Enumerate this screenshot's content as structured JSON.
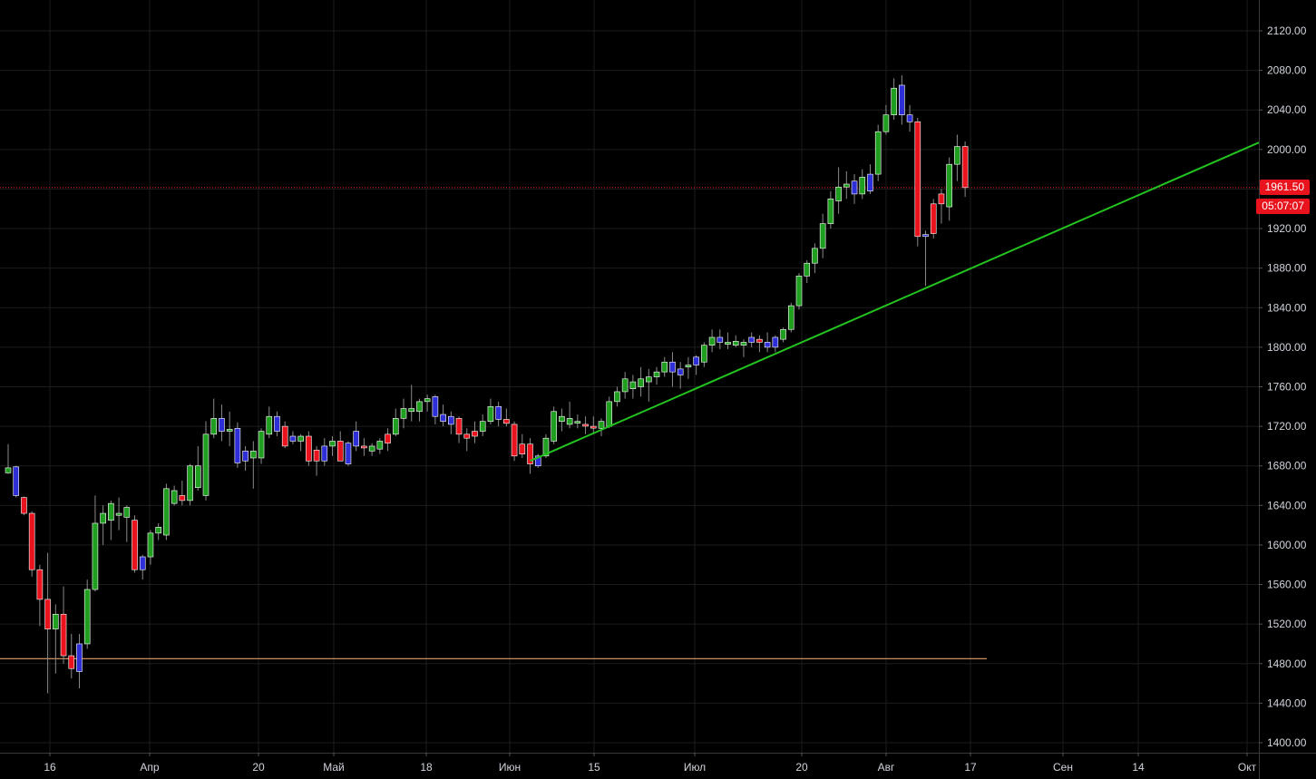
{
  "chart_data": {
    "type": "candlestick",
    "title": "",
    "xlabel": "",
    "ylabel": "",
    "ylim": [
      1390,
      2140
    ],
    "y_ticks": [
      2120,
      2080,
      2040,
      2000,
      1960,
      1920,
      1880,
      1840,
      1800,
      1760,
      1720,
      1680,
      1640,
      1600,
      1560,
      1520,
      1480,
      1440,
      1400
    ],
    "x_ticks": [
      "16",
      "Апр",
      "20",
      "Май",
      "18",
      "Июн",
      "15",
      "Июл",
      "20",
      "Авг",
      "17",
      "Сен",
      "14",
      "Окт"
    ],
    "grid": true,
    "colors": {
      "up": "#1f9e1f",
      "down": "#e8131c",
      "up_alt": "#2f2fd8",
      "trendline": "#22c31f",
      "support": "#e0a070",
      "price_line": "#e8131c",
      "background": "#000000",
      "grid": "#1c1c1c"
    },
    "candles": [
      {
        "o": 1678,
        "h": 1702,
        "l": 1672,
        "c": 1673,
        "color": "up"
      },
      {
        "o": 1679,
        "h": 1680,
        "l": 1648,
        "c": 1650,
        "color": "blue"
      },
      {
        "o": 1648,
        "h": 1649,
        "l": 1630,
        "c": 1632,
        "color": "down"
      },
      {
        "o": 1632,
        "h": 1634,
        "l": 1568,
        "c": 1575,
        "color": "down"
      },
      {
        "o": 1575,
        "h": 1580,
        "l": 1518,
        "c": 1545,
        "color": "down"
      },
      {
        "o": 1545,
        "h": 1592,
        "l": 1450,
        "c": 1515,
        "color": "down"
      },
      {
        "o": 1515,
        "h": 1540,
        "l": 1470,
        "c": 1530,
        "color": "up"
      },
      {
        "o": 1530,
        "h": 1558,
        "l": 1480,
        "c": 1488,
        "color": "down"
      },
      {
        "o": 1488,
        "h": 1510,
        "l": 1465,
        "c": 1475,
        "color": "down"
      },
      {
        "o": 1472,
        "h": 1510,
        "l": 1455,
        "c": 1500,
        "color": "blue"
      },
      {
        "o": 1500,
        "h": 1565,
        "l": 1495,
        "c": 1555,
        "color": "up"
      },
      {
        "o": 1555,
        "h": 1650,
        "l": 1553,
        "c": 1622,
        "color": "up"
      },
      {
        "o": 1622,
        "h": 1640,
        "l": 1600,
        "c": 1632,
        "color": "up"
      },
      {
        "o": 1625,
        "h": 1645,
        "l": 1605,
        "c": 1642,
        "color": "up"
      },
      {
        "o": 1630,
        "h": 1648,
        "l": 1615,
        "c": 1632,
        "color": "up"
      },
      {
        "o": 1628,
        "h": 1640,
        "l": 1603,
        "c": 1638,
        "color": "up"
      },
      {
        "o": 1625,
        "h": 1630,
        "l": 1572,
        "c": 1575,
        "color": "down"
      },
      {
        "o": 1575,
        "h": 1590,
        "l": 1565,
        "c": 1588,
        "color": "blue"
      },
      {
        "o": 1588,
        "h": 1615,
        "l": 1580,
        "c": 1612,
        "color": "up"
      },
      {
        "o": 1612,
        "h": 1622,
        "l": 1605,
        "c": 1618,
        "color": "up"
      },
      {
        "o": 1610,
        "h": 1662,
        "l": 1605,
        "c": 1657,
        "color": "up"
      },
      {
        "o": 1642,
        "h": 1660,
        "l": 1640,
        "c": 1655,
        "color": "up"
      },
      {
        "o": 1645,
        "h": 1665,
        "l": 1640,
        "c": 1650,
        "color": "down"
      },
      {
        "o": 1645,
        "h": 1682,
        "l": 1640,
        "c": 1680,
        "color": "up"
      },
      {
        "o": 1658,
        "h": 1700,
        "l": 1655,
        "c": 1680,
        "color": "up"
      },
      {
        "o": 1650,
        "h": 1725,
        "l": 1645,
        "c": 1712,
        "color": "up"
      },
      {
        "o": 1712,
        "h": 1748,
        "l": 1708,
        "c": 1728,
        "color": "up"
      },
      {
        "o": 1728,
        "h": 1742,
        "l": 1705,
        "c": 1715,
        "color": "blue"
      },
      {
        "o": 1715,
        "h": 1735,
        "l": 1700,
        "c": 1717,
        "color": "up"
      },
      {
        "o": 1718,
        "h": 1724,
        "l": 1678,
        "c": 1683,
        "color": "blue"
      },
      {
        "o": 1685,
        "h": 1700,
        "l": 1675,
        "c": 1695,
        "color": "blue"
      },
      {
        "o": 1695,
        "h": 1705,
        "l": 1657,
        "c": 1688,
        "color": "up"
      },
      {
        "o": 1688,
        "h": 1718,
        "l": 1682,
        "c": 1715,
        "color": "up"
      },
      {
        "o": 1712,
        "h": 1740,
        "l": 1708,
        "c": 1730,
        "color": "up"
      },
      {
        "o": 1730,
        "h": 1735,
        "l": 1710,
        "c": 1715,
        "color": "blue"
      },
      {
        "o": 1720,
        "h": 1725,
        "l": 1698,
        "c": 1700,
        "color": "down"
      },
      {
        "o": 1710,
        "h": 1715,
        "l": 1702,
        "c": 1705,
        "color": "blue"
      },
      {
        "o": 1705,
        "h": 1712,
        "l": 1695,
        "c": 1710,
        "color": "up"
      },
      {
        "o": 1710,
        "h": 1715,
        "l": 1680,
        "c": 1685,
        "color": "down"
      },
      {
        "o": 1685,
        "h": 1700,
        "l": 1670,
        "c": 1696,
        "color": "down"
      },
      {
        "o": 1685,
        "h": 1708,
        "l": 1680,
        "c": 1700,
        "color": "blue"
      },
      {
        "o": 1700,
        "h": 1710,
        "l": 1690,
        "c": 1705,
        "color": "up"
      },
      {
        "o": 1705,
        "h": 1715,
        "l": 1685,
        "c": 1685,
        "color": "down"
      },
      {
        "o": 1682,
        "h": 1705,
        "l": 1680,
        "c": 1703,
        "color": "blue"
      },
      {
        "o": 1700,
        "h": 1725,
        "l": 1695,
        "c": 1715,
        "color": "blue"
      },
      {
        "o": 1700,
        "h": 1708,
        "l": 1690,
        "c": 1700,
        "color": "down"
      },
      {
        "o": 1695,
        "h": 1703,
        "l": 1690,
        "c": 1700,
        "color": "up"
      },
      {
        "o": 1697,
        "h": 1708,
        "l": 1692,
        "c": 1705,
        "color": "up"
      },
      {
        "o": 1703,
        "h": 1718,
        "l": 1695,
        "c": 1712,
        "color": "down"
      },
      {
        "o": 1712,
        "h": 1738,
        "l": 1710,
        "c": 1728,
        "color": "up"
      },
      {
        "o": 1728,
        "h": 1748,
        "l": 1718,
        "c": 1738,
        "color": "up"
      },
      {
        "o": 1738,
        "h": 1762,
        "l": 1725,
        "c": 1735,
        "color": "up"
      },
      {
        "o": 1735,
        "h": 1748,
        "l": 1725,
        "c": 1745,
        "color": "up"
      },
      {
        "o": 1745,
        "h": 1752,
        "l": 1735,
        "c": 1748,
        "color": "up"
      },
      {
        "o": 1750,
        "h": 1752,
        "l": 1722,
        "c": 1730,
        "color": "blue"
      },
      {
        "o": 1732,
        "h": 1742,
        "l": 1720,
        "c": 1725,
        "color": "blue"
      },
      {
        "o": 1730,
        "h": 1735,
        "l": 1712,
        "c": 1722,
        "color": "blue"
      },
      {
        "o": 1728,
        "h": 1730,
        "l": 1703,
        "c": 1712,
        "color": "down"
      },
      {
        "o": 1712,
        "h": 1718,
        "l": 1695,
        "c": 1708,
        "color": "down"
      },
      {
        "o": 1710,
        "h": 1725,
        "l": 1703,
        "c": 1715,
        "color": "down"
      },
      {
        "o": 1715,
        "h": 1732,
        "l": 1710,
        "c": 1725,
        "color": "up"
      },
      {
        "o": 1725,
        "h": 1748,
        "l": 1722,
        "c": 1740,
        "color": "up"
      },
      {
        "o": 1740,
        "h": 1745,
        "l": 1720,
        "c": 1727,
        "color": "blue"
      },
      {
        "o": 1727,
        "h": 1738,
        "l": 1720,
        "c": 1723,
        "color": "down"
      },
      {
        "o": 1722,
        "h": 1725,
        "l": 1685,
        "c": 1690,
        "color": "down"
      },
      {
        "o": 1692,
        "h": 1712,
        "l": 1688,
        "c": 1702,
        "color": "down"
      },
      {
        "o": 1702,
        "h": 1708,
        "l": 1672,
        "c": 1682,
        "color": "down"
      },
      {
        "o": 1680,
        "h": 1692,
        "l": 1678,
        "c": 1690,
        "color": "blue"
      },
      {
        "o": 1690,
        "h": 1712,
        "l": 1688,
        "c": 1708,
        "color": "up"
      },
      {
        "o": 1705,
        "h": 1740,
        "l": 1702,
        "c": 1735,
        "color": "up"
      },
      {
        "o": 1725,
        "h": 1738,
        "l": 1715,
        "c": 1730,
        "color": "up"
      },
      {
        "o": 1722,
        "h": 1745,
        "l": 1718,
        "c": 1728,
        "color": "up"
      },
      {
        "o": 1725,
        "h": 1732,
        "l": 1718,
        "c": 1725,
        "color": "up"
      },
      {
        "o": 1722,
        "h": 1730,
        "l": 1712,
        "c": 1722,
        "color": "down"
      },
      {
        "o": 1720,
        "h": 1730,
        "l": 1712,
        "c": 1720,
        "color": "down"
      },
      {
        "o": 1718,
        "h": 1728,
        "l": 1710,
        "c": 1725,
        "color": "up"
      },
      {
        "o": 1720,
        "h": 1750,
        "l": 1718,
        "c": 1745,
        "color": "up"
      },
      {
        "o": 1745,
        "h": 1760,
        "l": 1740,
        "c": 1755,
        "color": "up"
      },
      {
        "o": 1755,
        "h": 1775,
        "l": 1748,
        "c": 1768,
        "color": "up"
      },
      {
        "o": 1758,
        "h": 1772,
        "l": 1748,
        "c": 1765,
        "color": "up"
      },
      {
        "o": 1760,
        "h": 1780,
        "l": 1750,
        "c": 1768,
        "color": "up"
      },
      {
        "o": 1765,
        "h": 1778,
        "l": 1745,
        "c": 1770,
        "color": "up"
      },
      {
        "o": 1770,
        "h": 1780,
        "l": 1762,
        "c": 1775,
        "color": "up"
      },
      {
        "o": 1775,
        "h": 1790,
        "l": 1770,
        "c": 1785,
        "color": "up"
      },
      {
        "o": 1785,
        "h": 1795,
        "l": 1760,
        "c": 1775,
        "color": "blue"
      },
      {
        "o": 1778,
        "h": 1785,
        "l": 1758,
        "c": 1772,
        "color": "blue"
      },
      {
        "o": 1780,
        "h": 1790,
        "l": 1768,
        "c": 1782,
        "color": "up"
      },
      {
        "o": 1782,
        "h": 1792,
        "l": 1772,
        "c": 1790,
        "color": "blue"
      },
      {
        "o": 1785,
        "h": 1805,
        "l": 1780,
        "c": 1802,
        "color": "up"
      },
      {
        "o": 1802,
        "h": 1818,
        "l": 1795,
        "c": 1810,
        "color": "up"
      },
      {
        "o": 1810,
        "h": 1818,
        "l": 1798,
        "c": 1805,
        "color": "blue"
      },
      {
        "o": 1803,
        "h": 1815,
        "l": 1798,
        "c": 1805,
        "color": "up"
      },
      {
        "o": 1806,
        "h": 1812,
        "l": 1800,
        "c": 1802,
        "color": "up"
      },
      {
        "o": 1802,
        "h": 1808,
        "l": 1790,
        "c": 1805,
        "color": "up"
      },
      {
        "o": 1805,
        "h": 1815,
        "l": 1800,
        "c": 1810,
        "color": "blue"
      },
      {
        "o": 1808,
        "h": 1812,
        "l": 1795,
        "c": 1805,
        "color": "down"
      },
      {
        "o": 1805,
        "h": 1815,
        "l": 1795,
        "c": 1800,
        "color": "blue"
      },
      {
        "o": 1800,
        "h": 1812,
        "l": 1795,
        "c": 1810,
        "color": "blue"
      },
      {
        "o": 1808,
        "h": 1820,
        "l": 1805,
        "c": 1818,
        "color": "up"
      },
      {
        "o": 1818,
        "h": 1845,
        "l": 1815,
        "c": 1842,
        "color": "up"
      },
      {
        "o": 1842,
        "h": 1875,
        "l": 1838,
        "c": 1872,
        "color": "up"
      },
      {
        "o": 1872,
        "h": 1888,
        "l": 1865,
        "c": 1885,
        "color": "up"
      },
      {
        "o": 1885,
        "h": 1905,
        "l": 1875,
        "c": 1900,
        "color": "up"
      },
      {
        "o": 1900,
        "h": 1935,
        "l": 1890,
        "c": 1925,
        "color": "up"
      },
      {
        "o": 1925,
        "h": 1958,
        "l": 1920,
        "c": 1950,
        "color": "up"
      },
      {
        "o": 1948,
        "h": 1982,
        "l": 1935,
        "c": 1962,
        "color": "up"
      },
      {
        "o": 1962,
        "h": 1978,
        "l": 1950,
        "c": 1965,
        "color": "up"
      },
      {
        "o": 1968,
        "h": 1975,
        "l": 1945,
        "c": 1955,
        "color": "blue"
      },
      {
        "o": 1955,
        "h": 1980,
        "l": 1950,
        "c": 1972,
        "color": "up"
      },
      {
        "o": 1958,
        "h": 1985,
        "l": 1955,
        "c": 1975,
        "color": "blue"
      },
      {
        "o": 1975,
        "h": 2025,
        "l": 1968,
        "c": 2018,
        "color": "up"
      },
      {
        "o": 2018,
        "h": 2045,
        "l": 2015,
        "c": 2035,
        "color": "up"
      },
      {
        "o": 2035,
        "h": 2072,
        "l": 2030,
        "c": 2062,
        "color": "up"
      },
      {
        "o": 2065,
        "h": 2075,
        "l": 2025,
        "c": 2035,
        "color": "blue"
      },
      {
        "o": 2035,
        "h": 2045,
        "l": 2018,
        "c": 2028,
        "color": "blue"
      },
      {
        "o": 2028,
        "h": 2032,
        "l": 1902,
        "c": 1912,
        "color": "down"
      },
      {
        "o": 1914,
        "h": 1918,
        "l": 1862,
        "c": 1912,
        "color": "blue"
      },
      {
        "o": 1915,
        "h": 1950,
        "l": 1910,
        "c": 1945,
        "color": "down"
      },
      {
        "o": 1945,
        "h": 1960,
        "l": 1925,
        "c": 1955,
        "color": "down"
      },
      {
        "o": 1942,
        "h": 1992,
        "l": 1928,
        "c": 1985,
        "color": "up"
      },
      {
        "o": 1985,
        "h": 2015,
        "l": 1968,
        "c": 2003,
        "color": "up"
      },
      {
        "o": 2003,
        "h": 2008,
        "l": 1952,
        "c": 1961.5,
        "color": "down"
      }
    ],
    "current_price_label": "1961.50",
    "countdown_label": "05:07:07",
    "current_price": 1961.5,
    "support_level": 1485,
    "trendline": {
      "from_candle": 66,
      "from_price": 1685,
      "to_date": "Окт",
      "to_price": 2007
    }
  }
}
